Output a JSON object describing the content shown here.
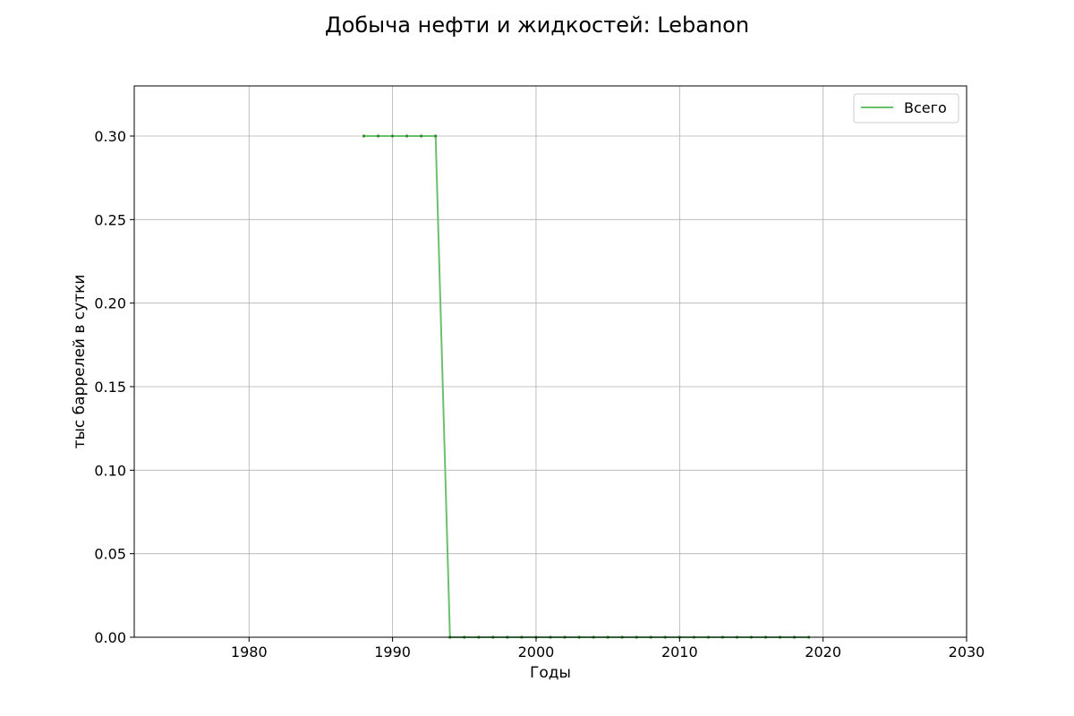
{
  "chart_data": {
    "type": "line",
    "title": "Добыча нефти и жидкостей: Lebanon",
    "xlabel": "Годы",
    "ylabel": "тыс баррелей в сутки",
    "xlim": [
      1972,
      2030
    ],
    "ylim": [
      0,
      0.33
    ],
    "x_ticks": [
      1980,
      1990,
      2000,
      2010,
      2020,
      2030
    ],
    "x_tick_labels": [
      "1980",
      "1990",
      "2000",
      "2010",
      "2020",
      "2030"
    ],
    "y_ticks": [
      0.0,
      0.05,
      0.1,
      0.15,
      0.2,
      0.25,
      0.3
    ],
    "y_tick_labels": [
      "0.00",
      "0.05",
      "0.10",
      "0.15",
      "0.20",
      "0.25",
      "0.30"
    ],
    "grid": true,
    "legend_position": "top-right",
    "series": [
      {
        "name": "Всего",
        "color": "#6cbf6c",
        "marker_color": "#2e8b2e",
        "x": [
          1988,
          1989,
          1990,
          1991,
          1992,
          1993,
          1994,
          1995,
          1996,
          1997,
          1998,
          1999,
          2000,
          2001,
          2002,
          2003,
          2004,
          2005,
          2006,
          2007,
          2008,
          2009,
          2010,
          2011,
          2012,
          2013,
          2014,
          2015,
          2016,
          2017,
          2018,
          2019
        ],
        "y": [
          0.3,
          0.3,
          0.3,
          0.3,
          0.3,
          0.3,
          0,
          0,
          0,
          0,
          0,
          0,
          0,
          0,
          0,
          0,
          0,
          0,
          0,
          0,
          0,
          0,
          0,
          0,
          0,
          0,
          0,
          0,
          0,
          0,
          0,
          0
        ]
      }
    ]
  }
}
